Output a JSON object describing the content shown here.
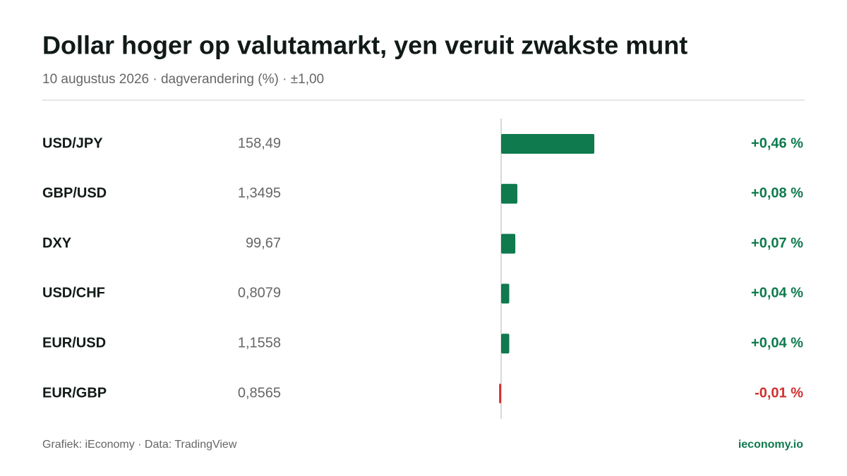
{
  "chart_data": {
    "type": "bar",
    "title": "Dollar hoger op valutamarkt, yen veruit zwakste munt",
    "subtitle": "10 augustus 2026 · dagverandering (%) · ±1,00",
    "categories": [
      "USD/JPY",
      "GBP/USD",
      "DXY",
      "USD/CHF",
      "EUR/USD",
      "EUR/GBP"
    ],
    "prices": [
      "158,49",
      "1,3495",
      "99,67",
      "0,8079",
      "1,1558",
      "0,8565"
    ],
    "values": [
      0.46,
      0.08,
      0.07,
      0.04,
      0.04,
      -0.01
    ],
    "value_labels": [
      "+0,46 %",
      "+0,08 %",
      "+0,07 %",
      "+0,04 %",
      "+0,04 %",
      "-0,01 %"
    ],
    "color": "#0e7a4e",
    "negative_color": "#d32f2f",
    "source": "Grafiek: iEconomy · Data: TradingView",
    "brand": "ieconomy.io"
  }
}
